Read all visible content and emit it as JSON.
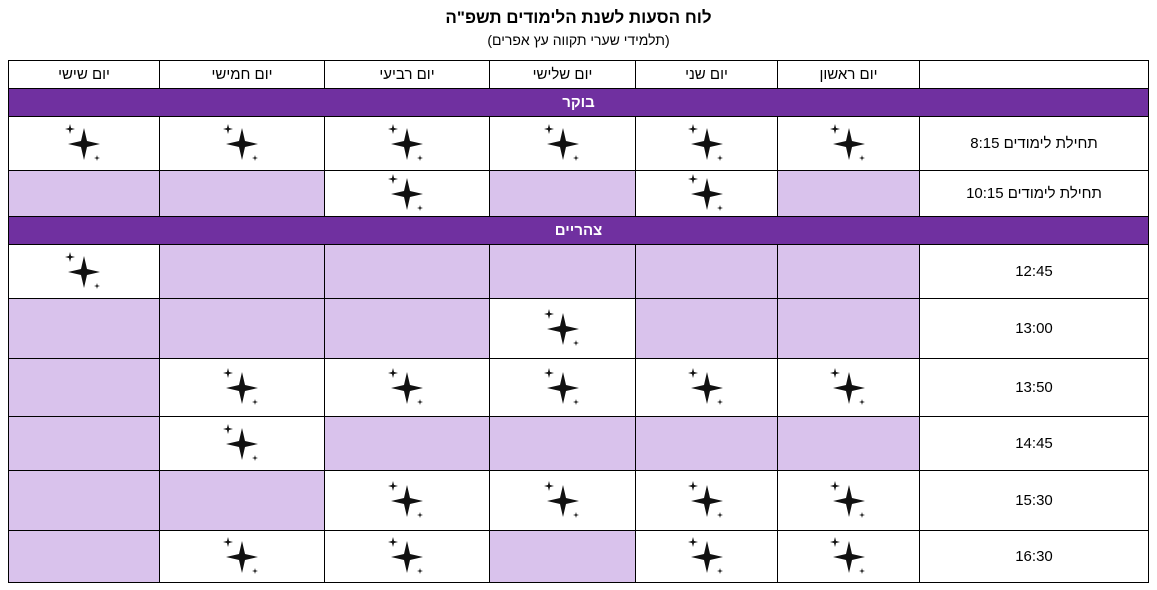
{
  "title": "לוח הסעות לשנת הלימודים תשפ\"ה",
  "subtitle": "(תלמידי שערי תקווה עץ אפרים)",
  "days": [
    "יום ראשון",
    "יום שני",
    "יום שלישי",
    "יום רביעי",
    "יום חמישי",
    "יום שישי"
  ],
  "colors": {
    "section": "#7030a0",
    "unavailable": "#d9c2ec",
    "available": "#ffffff"
  },
  "icon": "sparkle-icon",
  "sections": [
    {
      "name": "בוקר",
      "rows": [
        {
          "time": "תחילת לימודים 8:15",
          "cells": [
            true,
            true,
            true,
            true,
            true,
            true
          ]
        },
        {
          "time": "תחילת לימודים 10:15",
          "cells": [
            false,
            true,
            false,
            true,
            false,
            false
          ]
        }
      ]
    },
    {
      "name": "צהריים",
      "rows": [
        {
          "time": "12:45",
          "cells": [
            false,
            false,
            false,
            false,
            false,
            true
          ]
        },
        {
          "time": "13:00",
          "cells": [
            false,
            false,
            true,
            false,
            false,
            false
          ]
        },
        {
          "time": "13:50",
          "cells": [
            true,
            true,
            true,
            true,
            true,
            false
          ]
        },
        {
          "time": "14:45",
          "cells": [
            false,
            false,
            false,
            false,
            true,
            false
          ]
        },
        {
          "time": "15:30",
          "cells": [
            true,
            true,
            true,
            true,
            false,
            false
          ]
        },
        {
          "time": "16:30",
          "cells": [
            true,
            true,
            false,
            true,
            true,
            false
          ]
        }
      ]
    }
  ]
}
